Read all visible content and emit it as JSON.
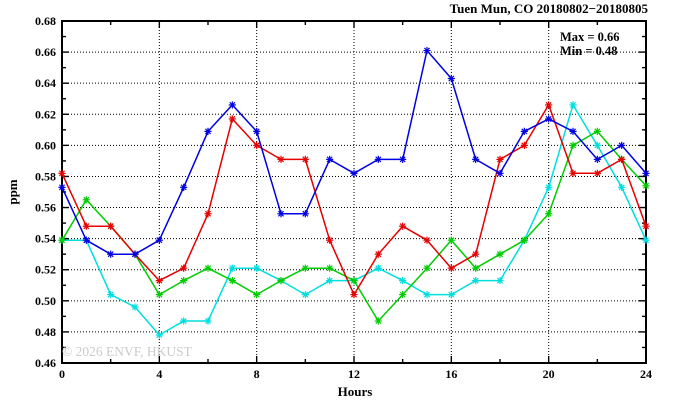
{
  "title": "Tuen Mun, CO 20180802−20180805",
  "legend": {
    "max_label": "Max = 0.66",
    "min_label": "Min = 0.48"
  },
  "watermark": "© 2026 ENVF, HKUST",
  "chart_data": {
    "type": "line",
    "title": "Tuen Mun, CO 20180802−20180805",
    "xlabel": "Hours",
    "ylabel": "ppm",
    "xlim": [
      0,
      24
    ],
    "ylim": [
      0.46,
      0.68
    ],
    "x_major_ticks": [
      0,
      4,
      8,
      12,
      16,
      20,
      24
    ],
    "x_minor_ticks": [
      2,
      6,
      10,
      14,
      18,
      22
    ],
    "y_major_step": 0.02,
    "y_minor_step": 0.01,
    "grid": true,
    "marker": "star",
    "legend_position": "top-right-inside",
    "stats": {
      "max": 0.66,
      "min": 0.48
    },
    "x": [
      0,
      1,
      2,
      3,
      4,
      5,
      6,
      7,
      8,
      9,
      10,
      11,
      12,
      13,
      14,
      15,
      16,
      17,
      18,
      19,
      20,
      21,
      22,
      23,
      24
    ],
    "series": [
      {
        "name": "cyan",
        "color": "#00dede",
        "values": [
          0.539,
          0.539,
          0.504,
          0.496,
          0.478,
          0.487,
          0.487,
          0.521,
          0.521,
          0.513,
          0.504,
          0.513,
          0.513,
          0.521,
          0.513,
          0.504,
          0.504,
          0.513,
          0.513,
          0.539,
          0.573,
          0.626,
          0.6,
          0.573,
          0.539
        ]
      },
      {
        "name": "green",
        "color": "#00cc00",
        "values": [
          0.539,
          0.565,
          0.548,
          0.53,
          0.504,
          0.513,
          0.521,
          0.513,
          0.504,
          0.513,
          0.521,
          0.521,
          0.513,
          0.487,
          0.504,
          0.521,
          0.539,
          0.521,
          0.53,
          0.539,
          0.556,
          0.6,
          0.609,
          0.591,
          0.574
        ]
      },
      {
        "name": "red",
        "color": "#e60000",
        "values": [
          0.582,
          0.548,
          0.548,
          0.53,
          0.513,
          0.521,
          0.556,
          0.617,
          0.6,
          0.591,
          0.591,
          0.539,
          0.504,
          0.53,
          0.548,
          0.539,
          0.521,
          0.53,
          0.591,
          0.6,
          0.626,
          0.582,
          0.582,
          0.591,
          0.548
        ]
      },
      {
        "name": "blue",
        "color": "#0000e0",
        "values": [
          0.573,
          0.539,
          0.53,
          0.53,
          0.539,
          0.573,
          0.609,
          0.626,
          0.609,
          0.556,
          0.556,
          0.591,
          0.582,
          0.591,
          0.591,
          0.661,
          0.643,
          0.591,
          0.582,
          0.609,
          0.617,
          0.609,
          0.591,
          0.6,
          0.582
        ]
      }
    ]
  }
}
